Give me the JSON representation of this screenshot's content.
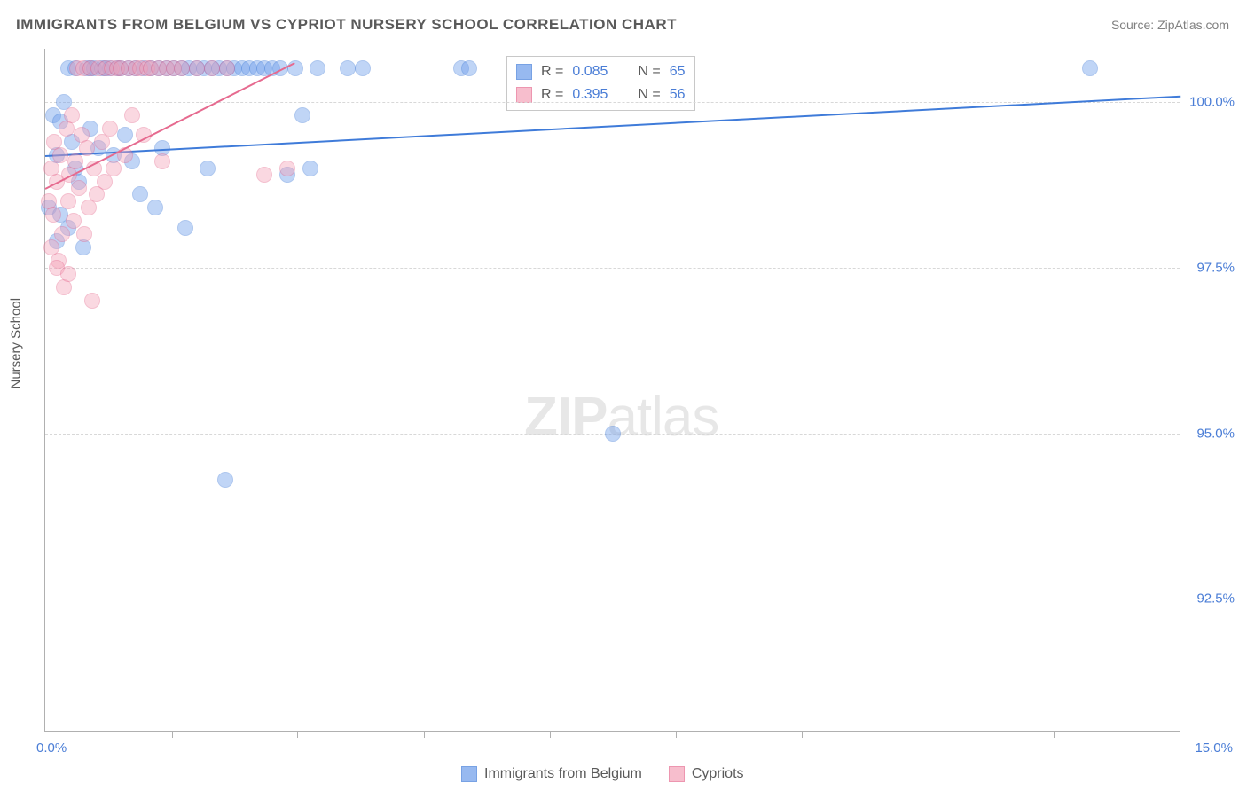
{
  "title": "IMMIGRANTS FROM BELGIUM VS CYPRIOT NURSERY SCHOOL CORRELATION CHART",
  "source": "Source: ZipAtlas.com",
  "ylabel": "Nursery School",
  "watermark_bold": "ZIP",
  "watermark_rest": "atlas",
  "chart": {
    "type": "scatter",
    "xlim": [
      0,
      15
    ],
    "ylim": [
      90.5,
      100.8
    ],
    "x_ticks_minor": [
      1.67,
      3.33,
      5.0,
      6.67,
      8.33,
      10.0,
      11.67,
      13.33
    ],
    "y_gridlines": [
      92.5,
      95.0,
      97.5,
      100.0
    ],
    "y_tick_labels": [
      "92.5%",
      "95.0%",
      "97.5%",
      "100.0%"
    ],
    "x_left_label": "0.0%",
    "x_right_label": "15.0%",
    "background_color": "#ffffff",
    "grid_color": "#d8d8d8",
    "axis_color": "#b0b0b0",
    "label_color": "#5a5a5a",
    "tick_label_color": "#4a7dd6",
    "marker_radius": 9,
    "marker_opacity": 0.42,
    "marker_border_opacity": 0.7,
    "series": [
      {
        "name": "Immigrants from Belgium",
        "fill": "#6c9ceb",
        "stroke": "#3f7bd9",
        "r_value": "0.085",
        "n_value": "65",
        "trend": {
          "x1": 0,
          "y1": 99.2,
          "x2": 15,
          "y2": 100.1,
          "width": 2
        },
        "points": [
          [
            0.05,
            98.4
          ],
          [
            0.1,
            99.8
          ],
          [
            0.15,
            99.2
          ],
          [
            0.2,
            98.3
          ],
          [
            0.2,
            99.7
          ],
          [
            0.25,
            100.0
          ],
          [
            0.3,
            100.5
          ],
          [
            0.3,
            98.1
          ],
          [
            0.35,
            99.4
          ],
          [
            0.4,
            99.0
          ],
          [
            0.4,
            100.5
          ],
          [
            0.45,
            98.8
          ],
          [
            0.5,
            97.8
          ],
          [
            0.55,
            100.5
          ],
          [
            0.6,
            100.5
          ],
          [
            0.6,
            99.6
          ],
          [
            0.65,
            100.5
          ],
          [
            0.7,
            99.3
          ],
          [
            0.75,
            100.5
          ],
          [
            0.8,
            100.5
          ],
          [
            0.85,
            100.5
          ],
          [
            0.9,
            99.2
          ],
          [
            0.95,
            100.5
          ],
          [
            1.0,
            100.5
          ],
          [
            1.05,
            99.5
          ],
          [
            1.1,
            100.5
          ],
          [
            1.15,
            99.1
          ],
          [
            1.2,
            100.5
          ],
          [
            1.25,
            98.6
          ],
          [
            1.3,
            100.5
          ],
          [
            1.4,
            100.5
          ],
          [
            1.45,
            98.4
          ],
          [
            1.5,
            100.5
          ],
          [
            1.55,
            99.3
          ],
          [
            1.6,
            100.5
          ],
          [
            1.7,
            100.5
          ],
          [
            1.8,
            100.5
          ],
          [
            1.85,
            98.1
          ],
          [
            1.9,
            100.5
          ],
          [
            2.0,
            100.5
          ],
          [
            2.1,
            100.5
          ],
          [
            2.15,
            99.0
          ],
          [
            2.2,
            100.5
          ],
          [
            2.3,
            100.5
          ],
          [
            2.38,
            94.3
          ],
          [
            2.4,
            100.5
          ],
          [
            2.5,
            100.5
          ],
          [
            2.6,
            100.5
          ],
          [
            2.7,
            100.5
          ],
          [
            2.8,
            100.5
          ],
          [
            2.9,
            100.5
          ],
          [
            3.0,
            100.5
          ],
          [
            3.1,
            100.5
          ],
          [
            3.2,
            98.9
          ],
          [
            3.3,
            100.5
          ],
          [
            3.4,
            99.8
          ],
          [
            3.5,
            99.0
          ],
          [
            3.6,
            100.5
          ],
          [
            4.0,
            100.5
          ],
          [
            4.2,
            100.5
          ],
          [
            5.5,
            100.5
          ],
          [
            5.6,
            100.5
          ],
          [
            7.5,
            95.0
          ],
          [
            13.8,
            100.5
          ],
          [
            0.15,
            97.9
          ]
        ]
      },
      {
        "name": "Cypriots",
        "fill": "#f5a3b8",
        "stroke": "#e66a8f",
        "r_value": "0.395",
        "n_value": "56",
        "trend": {
          "x1": 0,
          "y1": 98.7,
          "x2": 3.3,
          "y2": 100.6,
          "width": 2
        },
        "points": [
          [
            0.05,
            98.5
          ],
          [
            0.08,
            99.0
          ],
          [
            0.1,
            98.3
          ],
          [
            0.12,
            99.4
          ],
          [
            0.15,
            98.8
          ],
          [
            0.18,
            97.6
          ],
          [
            0.2,
            99.2
          ],
          [
            0.22,
            98.0
          ],
          [
            0.25,
            97.2
          ],
          [
            0.28,
            99.6
          ],
          [
            0.3,
            98.5
          ],
          [
            0.32,
            98.9
          ],
          [
            0.35,
            99.8
          ],
          [
            0.38,
            98.2
          ],
          [
            0.4,
            99.1
          ],
          [
            0.42,
            100.5
          ],
          [
            0.45,
            98.7
          ],
          [
            0.48,
            99.5
          ],
          [
            0.5,
            100.5
          ],
          [
            0.52,
            98.0
          ],
          [
            0.55,
            99.3
          ],
          [
            0.58,
            98.4
          ],
          [
            0.6,
            100.5
          ],
          [
            0.62,
            97.0
          ],
          [
            0.65,
            99.0
          ],
          [
            0.68,
            98.6
          ],
          [
            0.7,
            100.5
          ],
          [
            0.75,
            99.4
          ],
          [
            0.78,
            98.8
          ],
          [
            0.8,
            100.5
          ],
          [
            0.85,
            99.6
          ],
          [
            0.88,
            100.5
          ],
          [
            0.9,
            99.0
          ],
          [
            0.95,
            100.5
          ],
          [
            1.0,
            100.5
          ],
          [
            1.05,
            99.2
          ],
          [
            1.1,
            100.5
          ],
          [
            1.15,
            99.8
          ],
          [
            1.2,
            100.5
          ],
          [
            1.25,
            100.5
          ],
          [
            1.3,
            99.5
          ],
          [
            1.35,
            100.5
          ],
          [
            1.4,
            100.5
          ],
          [
            1.5,
            100.5
          ],
          [
            1.55,
            99.1
          ],
          [
            1.6,
            100.5
          ],
          [
            1.7,
            100.5
          ],
          [
            1.8,
            100.5
          ],
          [
            2.0,
            100.5
          ],
          [
            2.2,
            100.5
          ],
          [
            2.4,
            100.5
          ],
          [
            2.9,
            98.9
          ],
          [
            3.2,
            99.0
          ],
          [
            0.08,
            97.8
          ],
          [
            0.15,
            97.5
          ],
          [
            0.3,
            97.4
          ]
        ]
      }
    ]
  },
  "legend": {
    "series1_label": "Immigrants from Belgium",
    "series2_label": "Cypriots"
  }
}
